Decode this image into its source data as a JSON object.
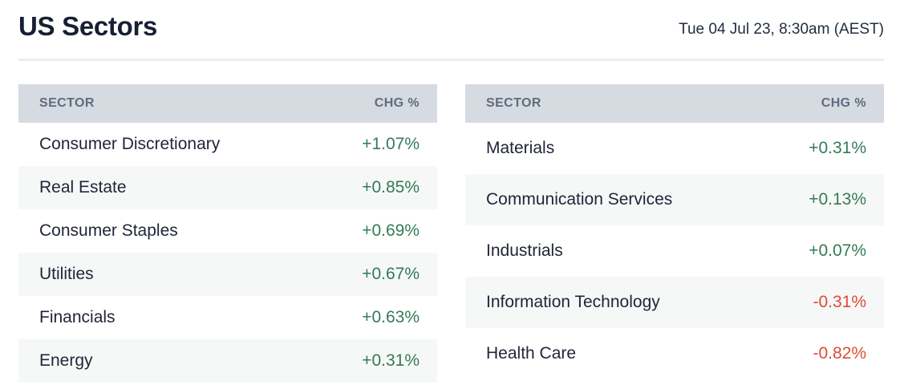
{
  "page": {
    "title": "US Sectors",
    "timestamp": "Tue 04 Jul 23, 8:30am (AEST)"
  },
  "colors": {
    "title_text": "#171f33",
    "header_bg": "#d5dbe1",
    "header_text": "#5d6d7e",
    "row_alt_bg": "#f6f8f8",
    "row_text": "#212637",
    "positive": "#347a58",
    "negative": "#dd4c35",
    "divider": "#e8eef5"
  },
  "tables": [
    {
      "headers": {
        "sector": "SECTOR",
        "change": "CHG %"
      },
      "rows": [
        {
          "sector": "Consumer Discretionary",
          "change": "+1.07%",
          "direction": "positive"
        },
        {
          "sector": "Real Estate",
          "change": "+0.85%",
          "direction": "positive"
        },
        {
          "sector": "Consumer Staples",
          "change": "+0.69%",
          "direction": "positive"
        },
        {
          "sector": "Utilities",
          "change": "+0.67%",
          "direction": "positive"
        },
        {
          "sector": "Financials",
          "change": "+0.63%",
          "direction": "positive"
        },
        {
          "sector": "Energy",
          "change": "+0.31%",
          "direction": "positive"
        }
      ]
    },
    {
      "headers": {
        "sector": "SECTOR",
        "change": "CHG %"
      },
      "rows": [
        {
          "sector": "Materials",
          "change": "+0.31%",
          "direction": "positive"
        },
        {
          "sector": "Communication Services",
          "change": "+0.13%",
          "direction": "positive"
        },
        {
          "sector": "Industrials",
          "change": "+0.07%",
          "direction": "positive"
        },
        {
          "sector": "Information Technology",
          "change": "-0.31%",
          "direction": "negative"
        },
        {
          "sector": "Health Care",
          "change": "-0.82%",
          "direction": "negative"
        }
      ]
    }
  ]
}
